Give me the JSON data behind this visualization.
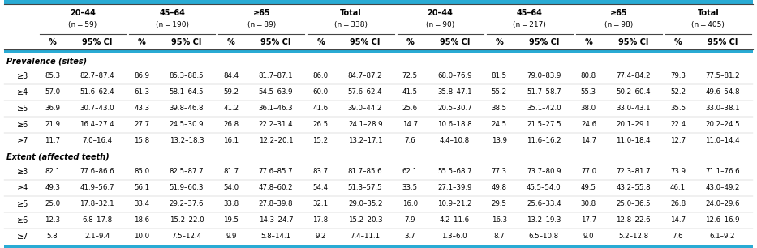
{
  "header_groups": [
    {
      "label": "20–44",
      "sub": "(n = 59)"
    },
    {
      "label": "45–64",
      "sub": "(n = 190)"
    },
    {
      "label": "≥65",
      "sub": "(n = 89)"
    },
    {
      "label": "Total",
      "sub": "(n = 338)"
    },
    {
      "label": "20–44",
      "sub": "(n = 90)"
    },
    {
      "label": "45–64",
      "sub": "(n = 217)"
    },
    {
      "label": "≥65",
      "sub": "(n = 98)"
    },
    {
      "label": "Total",
      "sub": "(n = 405)"
    }
  ],
  "section1_label": "Prevalence (sites)",
  "section2_label": "Extent (affected teeth)",
  "row_labels": [
    "≥3",
    "≥4",
    "≥5",
    "≥6",
    "≥7"
  ],
  "prevalence_data": [
    [
      "85.3",
      "82.7–87.4",
      "86.9",
      "85.3–88.5",
      "84.4",
      "81.7–87.1",
      "86.0",
      "84.7–87.2",
      "72.5",
      "68.0–76.9",
      "81.5",
      "79.0–83.9",
      "80.8",
      "77.4–84.2",
      "79.3",
      "77.5–81.2"
    ],
    [
      "57.0",
      "51.6–62.4",
      "61.3",
      "58.1–64.5",
      "59.2",
      "54.5–63.9",
      "60.0",
      "57.6–62.4",
      "41.5",
      "35.8–47.1",
      "55.2",
      "51.7–58.7",
      "55.3",
      "50.2–60.4",
      "52.2",
      "49.6–54.8"
    ],
    [
      "36.9",
      "30.7–43.0",
      "43.3",
      "39.8–46.8",
      "41.2",
      "36.1–46.3",
      "41.6",
      "39.0–44.2",
      "25.6",
      "20.5–30.7",
      "38.5",
      "35.1–42.0",
      "38.0",
      "33.0–43.1",
      "35.5",
      "33.0–38.1"
    ],
    [
      "21.9",
      "16.4–27.4",
      "27.7",
      "24.5–30.9",
      "26.8",
      "22.2–31.4",
      "26.5",
      "24.1–28.9",
      "14.7",
      "10.6–18.8",
      "24.5",
      "21.5–27.5",
      "24.6",
      "20.1–29.1",
      "22.4",
      "20.2–24.5"
    ],
    [
      "11.7",
      "7.0–16.4",
      "15.8",
      "13.2–18.3",
      "16.1",
      "12.2–20.1",
      "15.2",
      "13.2–17.1",
      "7.6",
      "4.4–10.8",
      "13.9",
      "11.6–16.2",
      "14.7",
      "11.0–18.4",
      "12.7",
      "11.0–14.4"
    ]
  ],
  "extent_data": [
    [
      "82.1",
      "77.6–86.6",
      "85.0",
      "82.5–87.7",
      "81.7",
      "77.6–85.7",
      "83.7",
      "81.7–85.6",
      "62.1",
      "55.5–68.7",
      "77.3",
      "73.7–80.9",
      "77.0",
      "72.3–81.7",
      "73.9",
      "71.1–76.6"
    ],
    [
      "49.3",
      "41.9–56.7",
      "56.1",
      "51.9–60.3",
      "54.0",
      "47.8–60.2",
      "54.4",
      "51.3–57.5",
      "33.5",
      "27.1–39.9",
      "49.8",
      "45.5–54.0",
      "49.5",
      "43.2–55.8",
      "46.1",
      "43.0–49.2"
    ],
    [
      "25.0",
      "17.8–32.1",
      "33.4",
      "29.2–37.6",
      "33.8",
      "27.8–39.8",
      "32.1",
      "29.0–35.2",
      "16.0",
      "10.9–21.2",
      "29.5",
      "25.6–33.4",
      "30.8",
      "25.0–36.5",
      "26.8",
      "24.0–29.6"
    ],
    [
      "12.3",
      "6.8–17.8",
      "18.6",
      "15.2–22.0",
      "19.5",
      "14.3–24.7",
      "17.8",
      "15.2–20.3",
      "7.9",
      "4.2–11.6",
      "16.3",
      "13.2–19.3",
      "17.7",
      "12.8–22.6",
      "14.7",
      "12.6–16.9"
    ],
    [
      "5.8",
      "2.1–9.4",
      "10.0",
      "7.5–12.4",
      "9.9",
      "5.8–14.1",
      "9.2",
      "7.4–11.1",
      "3.7",
      "1.3–6.0",
      "8.7",
      "6.5–10.8",
      "9.0",
      "5.2–12.8",
      "7.6",
      "6.1–9.2"
    ]
  ],
  "cyan_color": "#29ABD4",
  "line_color": "#888888",
  "light_line": "#cccccc"
}
